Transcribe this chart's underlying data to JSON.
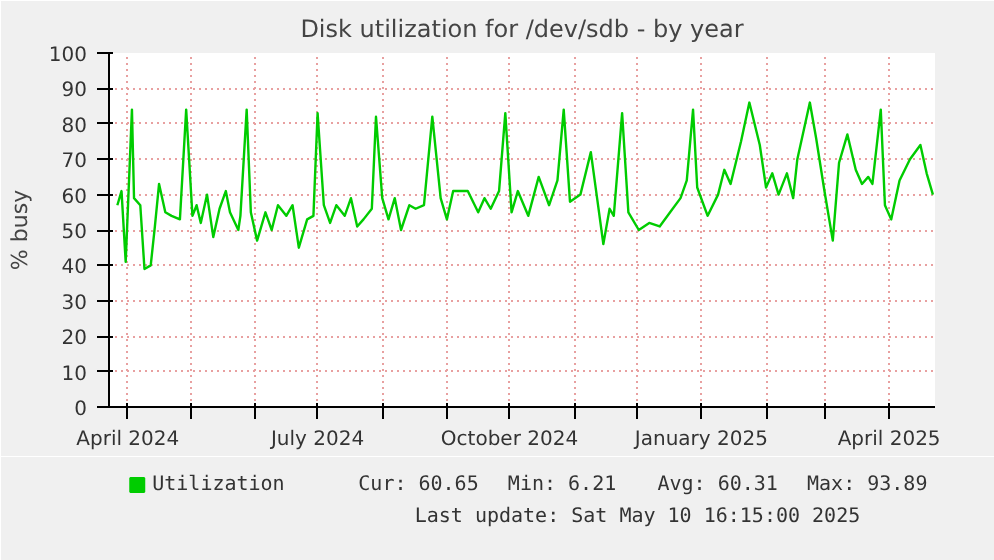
{
  "chart_data": {
    "type": "line",
    "title": "Disk utilization for /dev/sdb - by year",
    "ylabel": "% busy",
    "x": [
      "2024-03-27",
      "2024-03-29",
      "2024-03-31",
      "2024-04-03",
      "2024-04-04",
      "2024-04-07",
      "2024-04-09",
      "2024-04-12",
      "2024-04-14",
      "2024-04-16",
      "2024-04-19",
      "2024-04-22",
      "2024-04-26",
      "2024-04-29",
      "2024-05-02",
      "2024-05-04",
      "2024-05-06",
      "2024-05-09",
      "2024-05-12",
      "2024-05-15",
      "2024-05-18",
      "2024-05-20",
      "2024-05-24",
      "2024-05-25",
      "2024-05-28",
      "2024-05-30",
      "2024-06-02",
      "2024-06-06",
      "2024-06-09",
      "2024-06-12",
      "2024-06-16",
      "2024-06-19",
      "2024-06-22",
      "2024-06-26",
      "2024-06-29",
      "2024-07-01",
      "2024-07-04",
      "2024-07-07",
      "2024-07-10",
      "2024-07-14",
      "2024-07-17",
      "2024-07-20",
      "2024-07-23",
      "2024-07-27",
      "2024-07-29",
      "2024-08-01",
      "2024-08-04",
      "2024-08-07",
      "2024-08-10",
      "2024-08-14",
      "2024-08-17",
      "2024-08-21",
      "2024-08-25",
      "2024-08-29",
      "2024-09-01",
      "2024-09-04",
      "2024-09-11",
      "2024-09-16",
      "2024-09-19",
      "2024-09-22",
      "2024-09-26",
      "2024-09-29",
      "2024-10-02",
      "2024-10-05",
      "2024-10-10",
      "2024-10-15",
      "2024-10-20",
      "2024-10-24",
      "2024-10-27",
      "2024-10-30",
      "2024-11-04",
      "2024-11-09",
      "2024-11-12",
      "2024-11-15",
      "2024-11-18",
      "2024-11-20",
      "2024-11-24",
      "2024-11-27",
      "2024-12-02",
      "2024-12-07",
      "2024-12-12",
      "2024-12-17",
      "2024-12-22",
      "2024-12-25",
      "2024-12-28",
      "2024-12-30",
      "2025-01-04",
      "2025-01-09",
      "2025-01-12",
      "2025-01-15",
      "2025-01-20",
      "2025-01-24",
      "2025-01-29",
      "2025-02-01",
      "2025-02-04",
      "2025-02-07",
      "2025-02-11",
      "2025-02-14",
      "2025-02-16",
      "2025-02-22",
      "2025-02-25",
      "2025-03-01",
      "2025-03-05",
      "2025-03-08",
      "2025-03-12",
      "2025-03-16",
      "2025-03-19",
      "2025-03-22",
      "2025-03-24",
      "2025-03-28",
      "2025-03-30",
      "2025-04-02",
      "2025-04-06",
      "2025-04-11",
      "2025-04-16",
      "2025-04-19",
      "2025-04-22"
    ],
    "series": [
      {
        "name": "Utilization",
        "color": "#00cc00",
        "values": [
          57,
          61,
          41,
          84,
          59,
          57,
          39,
          40,
          51,
          63,
          55,
          54,
          53,
          84,
          54,
          57,
          52,
          60,
          48,
          56,
          61,
          55,
          50,
          54,
          84,
          55,
          47,
          55,
          50,
          57,
          54,
          57,
          45,
          53,
          54,
          83,
          57,
          52,
          57,
          54,
          59,
          51,
          53,
          56,
          82,
          59,
          53,
          59,
          50,
          57,
          56,
          57,
          82,
          59,
          53,
          61,
          61,
          55,
          59,
          56,
          61,
          83,
          55,
          61,
          54,
          65,
          57,
          64,
          84,
          58,
          60,
          72,
          59,
          46,
          56,
          54,
          83,
          55,
          50,
          52,
          51,
          55,
          59,
          64,
          84,
          62,
          54,
          60,
          67,
          63,
          75,
          86,
          74,
          62,
          66,
          60,
          66,
          59,
          70,
          86,
          76,
          61,
          47,
          69,
          77,
          67,
          63,
          65,
          63,
          84,
          57,
          53,
          64,
          70,
          74,
          66,
          60
        ]
      }
    ],
    "xlim": [
      "2024-03-23",
      "2025-04-23"
    ],
    "xticks": [
      {
        "value": "2024-04-01",
        "label": "April 2024"
      },
      {
        "value": "2024-05-01",
        "label": null
      },
      {
        "value": "2024-06-01",
        "label": null
      },
      {
        "value": "2024-07-01",
        "label": "July 2024"
      },
      {
        "value": "2024-08-01",
        "label": null
      },
      {
        "value": "2024-09-01",
        "label": null
      },
      {
        "value": "2024-10-01",
        "label": "October 2024"
      },
      {
        "value": "2024-11-01",
        "label": null
      },
      {
        "value": "2024-12-01",
        "label": null
      },
      {
        "value": "2025-01-01",
        "label": "January 2025"
      },
      {
        "value": "2025-02-01",
        "label": null
      },
      {
        "value": "2025-03-01",
        "label": null
      },
      {
        "value": "2025-04-01",
        "label": "April 2025"
      }
    ],
    "ylim": [
      0,
      100
    ],
    "yticks": [
      0,
      10,
      20,
      30,
      40,
      50,
      60,
      70,
      80,
      90,
      100
    ],
    "grid": true,
    "legend": "bottom",
    "annotations": [
      "Cur: 60.65",
      "Min: 6.21",
      "Avg: 60.31",
      "Max: 93.89",
      "Last update: Sat May 10 16:15:00 2025"
    ]
  }
}
